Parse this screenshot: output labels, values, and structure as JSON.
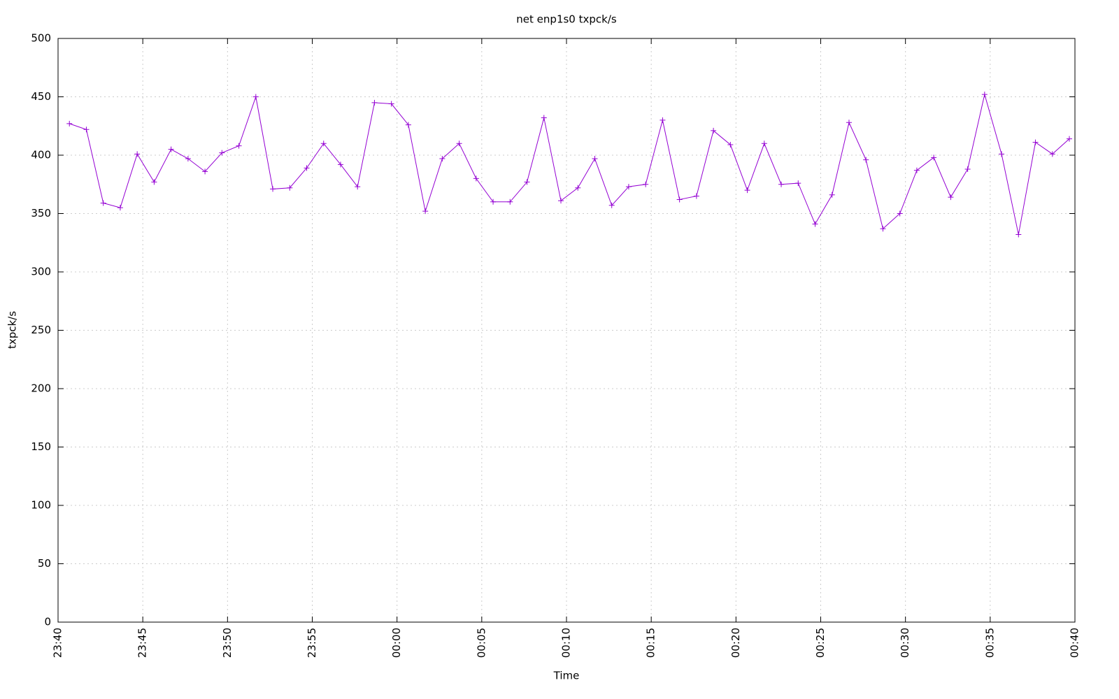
{
  "chart_data": {
    "type": "line",
    "title": "net enp1s0 txpck/s",
    "xlabel": "Time",
    "ylabel": "txpck/s",
    "x": [
      0.67,
      1.67,
      2.67,
      3.67,
      4.67,
      5.67,
      6.67,
      7.67,
      8.67,
      9.67,
      10.67,
      11.67,
      12.67,
      13.67,
      14.67,
      15.67,
      16.67,
      17.67,
      18.67,
      19.67,
      20.67,
      21.67,
      22.67,
      23.67,
      24.67,
      25.67,
      26.67,
      27.67,
      28.67,
      29.67,
      30.67,
      31.67,
      32.67,
      33.67,
      34.67,
      35.67,
      36.67,
      37.67,
      38.67,
      39.67,
      40.67,
      41.67,
      42.67,
      43.67,
      44.67,
      45.67,
      46.67,
      47.67,
      48.67,
      49.67,
      50.67,
      51.67,
      52.67,
      53.67,
      54.67,
      55.67,
      56.67,
      57.67,
      58.67,
      59.67
    ],
    "values": [
      427,
      422,
      359,
      355,
      401,
      377,
      405,
      397,
      386,
      402,
      408,
      450,
      371,
      372,
      389,
      410,
      392,
      373,
      445,
      444,
      426,
      352,
      397,
      410,
      380,
      360,
      360,
      377,
      432,
      361,
      372,
      397,
      357,
      373,
      375,
      430,
      362,
      365,
      421,
      409,
      370,
      410,
      375,
      376,
      341,
      366,
      428,
      396,
      337,
      350,
      387,
      398,
      364,
      388,
      452,
      401,
      332,
      411,
      401,
      414
    ],
    "color": "#9400d3",
    "xlim": [
      0,
      60
    ],
    "xticks": [
      {
        "value": 0,
        "label": "23:40"
      },
      {
        "value": 5,
        "label": "23:45"
      },
      {
        "value": 10,
        "label": "23:50"
      },
      {
        "value": 15,
        "label": "23:55"
      },
      {
        "value": 20,
        "label": "00:00"
      },
      {
        "value": 25,
        "label": "00:05"
      },
      {
        "value": 30,
        "label": "00:10"
      },
      {
        "value": 35,
        "label": "00:15"
      },
      {
        "value": 40,
        "label": "00:20"
      },
      {
        "value": 45,
        "label": "00:25"
      },
      {
        "value": 50,
        "label": "00:30"
      },
      {
        "value": 55,
        "label": "00:35"
      },
      {
        "value": 60,
        "label": "00:40"
      }
    ],
    "ylim": [
      0,
      500
    ],
    "yticks": [
      0,
      50,
      100,
      150,
      200,
      250,
      300,
      350,
      400,
      450,
      500
    ],
    "grid": true
  }
}
